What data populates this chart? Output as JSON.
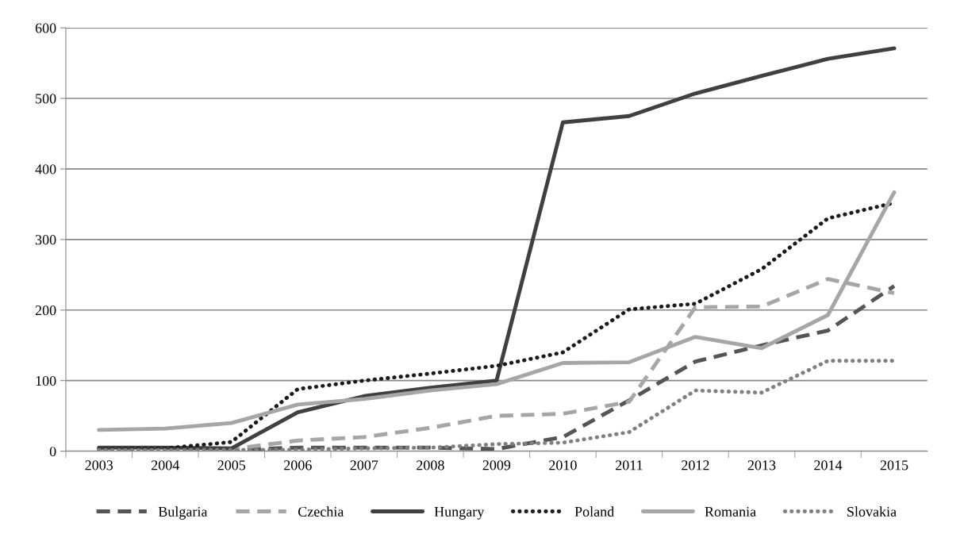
{
  "chart_data": {
    "type": "line",
    "categories": [
      "2003",
      "2004",
      "2005",
      "2006",
      "2007",
      "2008",
      "2009",
      "2010",
      "2011",
      "2012",
      "2013",
      "2014",
      "2015"
    ],
    "series": [
      {
        "name": "Bulgaria",
        "color": "#555555",
        "line_style": "dashed",
        "values": [
          2,
          2,
          2,
          5,
          5,
          5,
          3,
          20,
          72,
          127,
          150,
          171,
          234
        ]
      },
      {
        "name": "Czechia",
        "color": "#a6a6a6",
        "line_style": "dashed",
        "values": [
          1,
          2,
          3,
          15,
          20,
          33,
          50,
          53,
          70,
          204,
          205,
          244,
          224
        ]
      },
      {
        "name": "Hungary",
        "color": "#404040",
        "line_style": "solid",
        "values": [
          5,
          5,
          4,
          55,
          78,
          90,
          100,
          466,
          475,
          507,
          532,
          556,
          571
        ]
      },
      {
        "name": "Poland",
        "color": "#1a1a1a",
        "line_style": "dotted",
        "values": [
          3,
          4,
          13,
          88,
          100,
          110,
          121,
          140,
          201,
          209,
          258,
          330,
          352
        ]
      },
      {
        "name": "Romania",
        "color": "#a6a6a6",
        "line_style": "solid",
        "values": [
          30,
          32,
          40,
          66,
          74,
          86,
          95,
          125,
          126,
          162,
          146,
          193,
          367
        ]
      },
      {
        "name": "Slovakia",
        "color": "#808080",
        "line_style": "dotted",
        "values": [
          2,
          2,
          2,
          2,
          4,
          5,
          10,
          12,
          27,
          86,
          83,
          128,
          128
        ]
      }
    ],
    "ylim": [
      0,
      600
    ],
    "yticks": [
      0,
      100,
      200,
      300,
      400,
      500,
      600
    ],
    "grid": "y",
    "legend": "bottom",
    "marker": "none"
  }
}
